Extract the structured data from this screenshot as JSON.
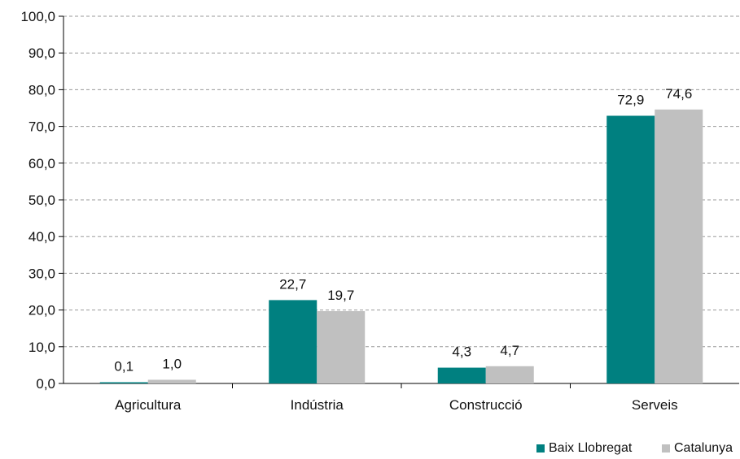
{
  "chart_data": {
    "type": "bar",
    "categories": [
      "Agricultura",
      "Indústria",
      "Construcció",
      "Serveis"
    ],
    "series": [
      {
        "name": "Baix Llobregat",
        "values": [
          0.1,
          22.7,
          4.3,
          72.9
        ],
        "labels": [
          "0,1",
          "22,7",
          "4,3",
          "72,9"
        ]
      },
      {
        "name": "Catalunya",
        "values": [
          1.0,
          19.7,
          4.7,
          74.6
        ],
        "labels": [
          "1,0",
          "19,7",
          "4,7",
          "74,6"
        ]
      }
    ],
    "ylim": [
      0,
      100
    ],
    "yticks": [
      0,
      10,
      20,
      30,
      40,
      50,
      60,
      70,
      80,
      90,
      100
    ],
    "ytick_labels": [
      "0,0",
      "10,0",
      "20,0",
      "30,0",
      "40,0",
      "50,0",
      "60,0",
      "70,0",
      "80,0",
      "90,0",
      "100,0"
    ],
    "grid": true,
    "legend_position": "bottom-right",
    "colors": [
      "#008080",
      "#c0c0c0"
    ]
  }
}
